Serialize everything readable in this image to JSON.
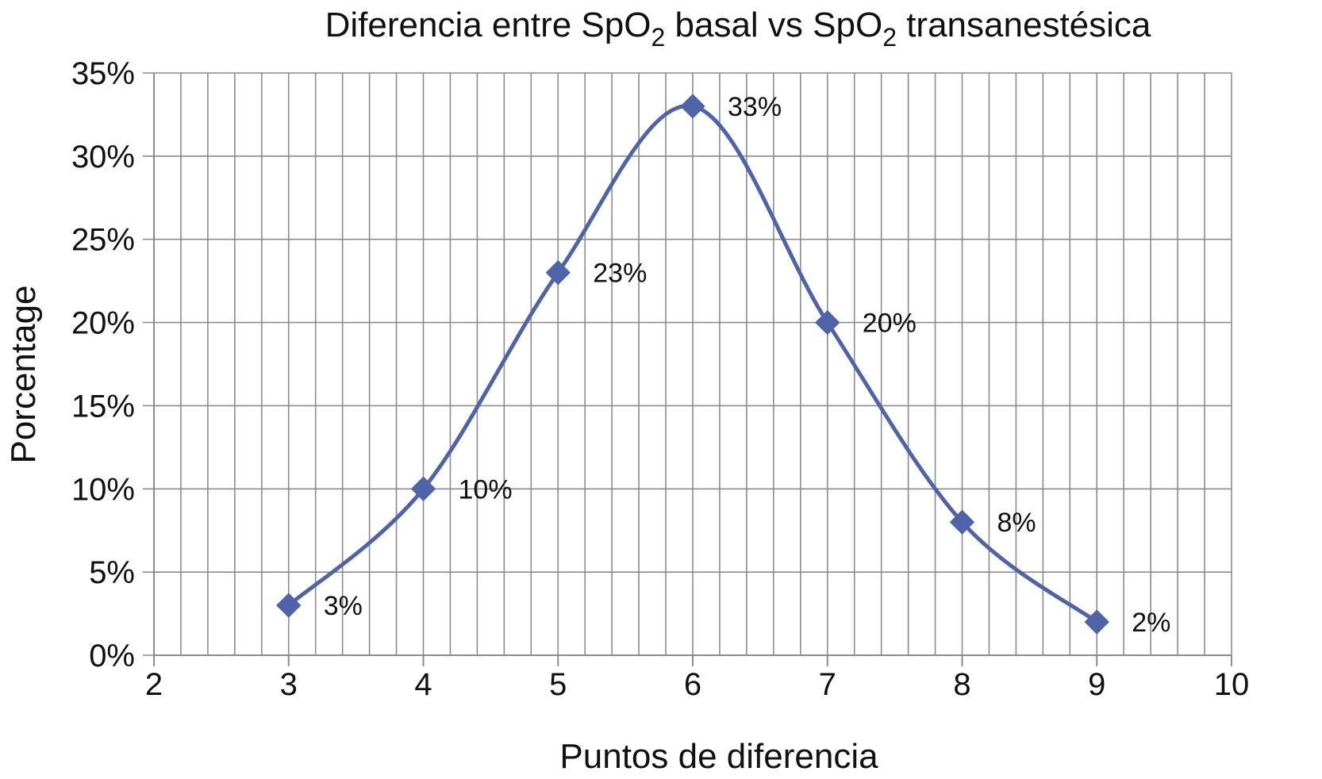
{
  "chart_data": {
    "type": "line",
    "title": {
      "prefix": "Diferencia entre SpO",
      "sub1": "2",
      "middle": " basal vs SpO",
      "sub2": "2",
      "suffix": " transanestésica"
    },
    "xlabel": "Puntos de diferencia",
    "ylabel": "Porcentage",
    "xlim": [
      2,
      10
    ],
    "ylim": [
      0,
      0.35
    ],
    "x_ticks": [
      2,
      3,
      4,
      5,
      6,
      7,
      8,
      9,
      10
    ],
    "y_ticks": [
      0,
      0.05,
      0.1,
      0.15,
      0.2,
      0.25,
      0.3,
      0.35
    ],
    "y_tick_labels": [
      "0%",
      "5%",
      "10%",
      "15%",
      "20%",
      "25%",
      "30%",
      "35%"
    ],
    "x_minor_step": 0.2,
    "grid": true,
    "smooth": true,
    "marker": "diamond",
    "series": [
      {
        "x": [
          3,
          4,
          5,
          6,
          7,
          8,
          9
        ],
        "values": [
          0.03,
          0.1,
          0.23,
          0.33,
          0.2,
          0.08,
          0.02
        ],
        "labels": [
          "3%",
          "10%",
          "23%",
          "33%",
          "20%",
          "8%",
          "2%"
        ],
        "color": "#4f64a8"
      }
    ]
  }
}
